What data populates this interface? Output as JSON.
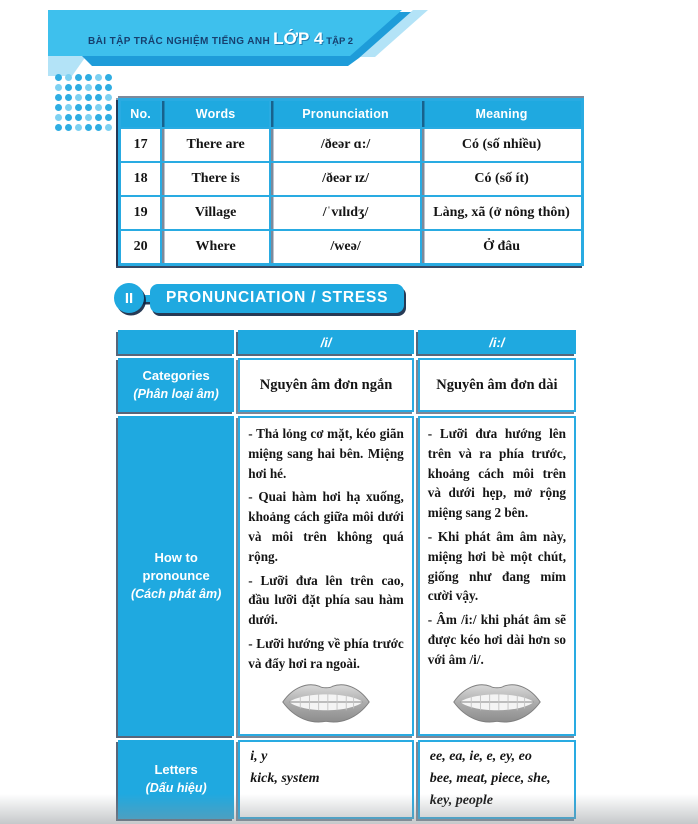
{
  "banner": {
    "title_prefix": "BÀI TẬP TRẮC NGHIỆM TIẾNG ANH",
    "title_grade": "LỚP 4",
    "title_suffix": "TẬP 2"
  },
  "colors": {
    "accent_cyan": "#1fa9e0",
    "border_cyan": "#29abe2",
    "band_cyan": "#3ec0ed",
    "light_blue": "#b3e3f7",
    "shadow_navy": "#102542"
  },
  "icons": {
    "mouth": "lips-with-teeth"
  },
  "vocab_table": {
    "headers": [
      "No.",
      "Words",
      "Pronunciation",
      "Meaning"
    ],
    "rows": [
      {
        "no": "17",
        "word": "There are",
        "pron": "/ðeər ɑ:/",
        "meaning": "Có (số nhiều)"
      },
      {
        "no": "18",
        "word": "There is",
        "pron": "/ðeər ɪz/",
        "meaning": "Có (số ít)"
      },
      {
        "no": "19",
        "word": "Village",
        "pron": "/ˈvɪlɪdʒ/",
        "meaning": "Làng, xã (ở nông thôn)"
      },
      {
        "no": "20",
        "word": "Where",
        "pron": "/weə/",
        "meaning": "Ở đâu"
      }
    ]
  },
  "section": {
    "numeral": "II",
    "title": "PRONUNCIATION / STRESS"
  },
  "pron_table": {
    "col_headers": {
      "i": "/i/",
      "ii": "/i:/"
    },
    "categories": {
      "label": "Categories",
      "label_sub": "(Phân loại âm)",
      "i": "Nguyên âm đơn ngắn",
      "ii": "Nguyên âm đơn dài"
    },
    "how": {
      "label": "How to",
      "label2": "pronounce",
      "label_sub": "(Cách phát âm)",
      "i_points": [
        "- Thả lỏng cơ mặt, kéo giãn miệng sang hai bên. Miệng hơi hé.",
        "- Quai hàm hơi hạ xuống, khoảng cách giữa môi dưới và môi trên không quá rộng.",
        "- Lưỡi đưa lên trên cao, đầu lưỡi đặt phía sau hàm dưới.",
        "- Lưỡi hướng về phía trước và đẩy hơi ra ngoài."
      ],
      "ii_points": [
        "- Lưỡi đưa hướng lên trên và ra phía trước, khoảng cách môi trên và dưới hẹp, mở rộng miệng sang 2 bên.",
        "- Khi phát âm âm này, miệng hơi bè một chút, giống như đang mỉm cười vậy.",
        "- Âm /i:/ khi phát âm sẽ được kéo hơi dài hơn so với âm /i/."
      ]
    },
    "letters": {
      "label": "Letters",
      "label_sub": "(Dấu hiệu)",
      "i_letters": "i, y",
      "i_examples": "kick, system",
      "ii_letters": "ee, ea, ie, e, ey, eo",
      "ii_examples": "bee, meat, piece, she, key, people"
    }
  }
}
